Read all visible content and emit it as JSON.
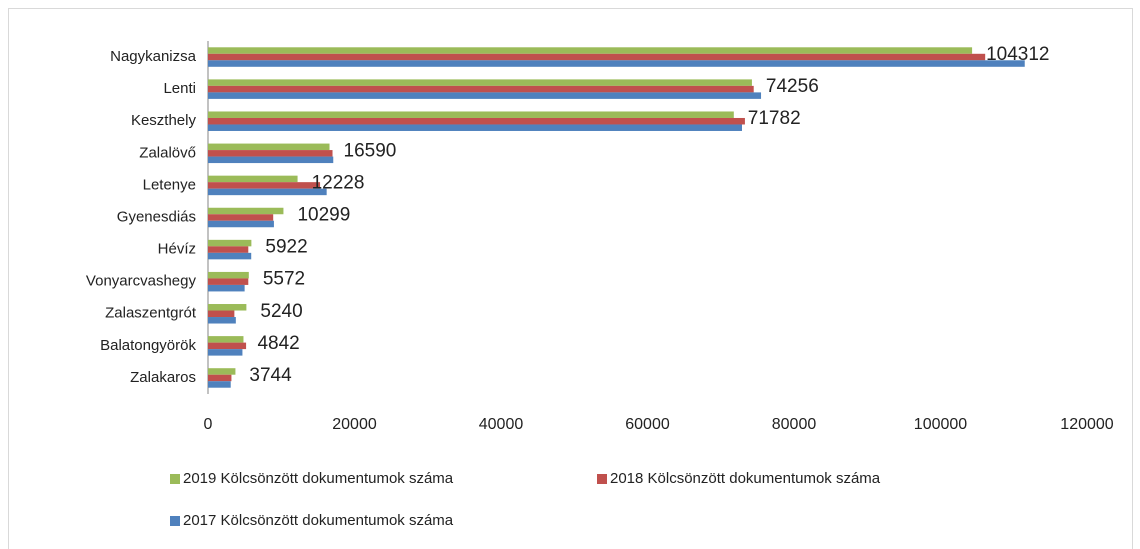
{
  "chart_data": {
    "type": "hbar",
    "categories": [
      "Nagykanizsa",
      "Lenti",
      "Keszthely",
      "Zalalövő",
      "Letenye",
      "Gyenesdiás",
      "Hévíz",
      "Vonyarcvashegy",
      "Zalaszentgrót",
      "Balatongyörök",
      "Zalakaros"
    ],
    "series": [
      {
        "name": "2019 Kölcsönzött dokumentumok száma",
        "color": "#9bbb59",
        "values": [
          104312,
          74256,
          71782,
          16590,
          12228,
          10299,
          5922,
          5572,
          5240,
          4842,
          3744
        ]
      },
      {
        "name": "2018 Kölcsönzött dokumentumok száma",
        "color": "#c0504d",
        "values": [
          106100,
          74500,
          73300,
          17000,
          15300,
          8900,
          5500,
          5500,
          3600,
          5200,
          3200
        ]
      },
      {
        "name": "2017 Kölcsönzött dokumentumok száma",
        "color": "#4f81bd",
        "values": [
          111500,
          75500,
          72900,
          17100,
          16200,
          9000,
          5900,
          5000,
          3800,
          4700,
          3100
        ]
      }
    ],
    "xlim": [
      0,
      120000
    ],
    "xticks": [
      0,
      20000,
      40000,
      60000,
      80000,
      100000,
      120000
    ],
    "grid": false,
    "legend": "bottom"
  }
}
